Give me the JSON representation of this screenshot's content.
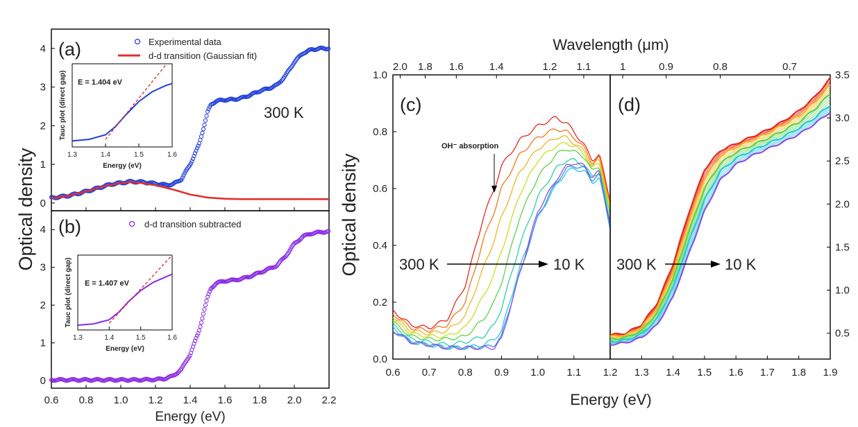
{
  "chart_data": [
    {
      "id": "a",
      "type": "scatter",
      "panel_label": "(a)",
      "annotation": "300 K",
      "xlim": [
        0.6,
        2.2
      ],
      "ylim": [
        -0.2,
        4.5
      ],
      "yticks": [
        "0",
        "1",
        "2",
        "3",
        "4"
      ],
      "legend": [
        "Experimental data",
        "d-d transition (Gaussian fit)"
      ],
      "series": [
        {
          "name": "Experimental data",
          "color": "#1f3fd8",
          "marker": "circle",
          "x": [
            0.6,
            0.65,
            0.7,
            0.75,
            0.8,
            0.85,
            0.9,
            0.95,
            1.0,
            1.05,
            1.1,
            1.15,
            1.2,
            1.25,
            1.3,
            1.35,
            1.4,
            1.45,
            1.48,
            1.5,
            1.52,
            1.55,
            1.6,
            1.65,
            1.7,
            1.75,
            1.8,
            1.85,
            1.9,
            1.95,
            2.0,
            2.05,
            2.1,
            2.15,
            2.2
          ],
          "y": [
            0.13,
            0.16,
            0.19,
            0.24,
            0.3,
            0.36,
            0.43,
            0.49,
            0.52,
            0.55,
            0.55,
            0.53,
            0.5,
            0.47,
            0.48,
            0.62,
            1.0,
            1.5,
            2.0,
            2.35,
            2.55,
            2.64,
            2.67,
            2.68,
            2.72,
            2.8,
            2.9,
            2.96,
            3.05,
            3.3,
            3.65,
            3.88,
            3.97,
            4.0,
            4.0
          ]
        },
        {
          "name": "d-d transition (Gaussian fit)",
          "color": "#e03030",
          "marker": "line",
          "x": [
            0.6,
            0.7,
            0.8,
            0.9,
            1.0,
            1.05,
            1.1,
            1.2,
            1.3,
            1.4,
            1.5,
            1.6,
            1.7,
            1.8,
            2.2
          ],
          "y": [
            0.12,
            0.19,
            0.3,
            0.43,
            0.52,
            0.54,
            0.53,
            0.46,
            0.35,
            0.22,
            0.14,
            0.11,
            0.1,
            0.1,
            0.1
          ]
        }
      ],
      "inset": {
        "label": "E = 1.404 eV",
        "ylabel": "Tauc plot (direct gap)",
        "xlabel": "Energy (eV)",
        "xlim": [
          1.3,
          1.6
        ],
        "xticks": [
          "1.3",
          "1.4",
          "1.5",
          "1.6"
        ],
        "curve_x": [
          1.3,
          1.35,
          1.4,
          1.43,
          1.46,
          1.5,
          1.54,
          1.58,
          1.6
        ],
        "curve_y": [
          0.08,
          0.1,
          0.16,
          0.27,
          0.42,
          0.6,
          0.73,
          0.81,
          0.84
        ],
        "fit_x": [
          1.4,
          1.58
        ],
        "fit_y": [
          0.1,
          1.08
        ]
      }
    },
    {
      "id": "b",
      "type": "scatter",
      "panel_label": "(b)",
      "xlabel": "Energy (eV)",
      "ylabel": "Optical density",
      "xlim": [
        0.6,
        2.2
      ],
      "ylim": [
        -0.2,
        4.5
      ],
      "xticks": [
        "0.6",
        "0.8",
        "1.0",
        "1.2",
        "1.4",
        "1.6",
        "1.8",
        "2.0",
        "2.2"
      ],
      "yticks": [
        "0",
        "1",
        "2",
        "3",
        "4"
      ],
      "legend": [
        "d-d transition subtracted"
      ],
      "series": [
        {
          "name": "d-d transition subtracted",
          "color": "#8a2be2",
          "marker": "circle",
          "x": [
            0.6,
            0.7,
            0.8,
            0.9,
            1.0,
            1.1,
            1.2,
            1.25,
            1.3,
            1.35,
            1.4,
            1.45,
            1.48,
            1.5,
            1.52,
            1.55,
            1.6,
            1.65,
            1.7,
            1.75,
            1.8,
            1.85,
            1.9,
            1.95,
            2.0,
            2.05,
            2.1,
            2.15,
            2.2
          ],
          "y": [
            0.02,
            0.02,
            0.02,
            0.02,
            0.02,
            0.02,
            0.03,
            0.05,
            0.12,
            0.3,
            0.7,
            1.3,
            1.85,
            2.2,
            2.45,
            2.58,
            2.64,
            2.66,
            2.7,
            2.77,
            2.86,
            2.95,
            3.05,
            3.3,
            3.62,
            3.82,
            3.9,
            3.93,
            3.95
          ]
        }
      ],
      "inset": {
        "label": "E = 1.407 eV",
        "ylabel": "Tauc plot (direct gap)",
        "xlabel": "Energy (eV)",
        "xlim": [
          1.3,
          1.6
        ],
        "xticks": [
          "1.3",
          "1.4",
          "1.5",
          "1.6"
        ],
        "curve_x": [
          1.3,
          1.35,
          1.4,
          1.43,
          1.46,
          1.5,
          1.54,
          1.58,
          1.6
        ],
        "curve_y": [
          0.07,
          0.09,
          0.15,
          0.26,
          0.41,
          0.58,
          0.7,
          0.78,
          0.82
        ],
        "fit_x": [
          1.4,
          1.6
        ],
        "fit_y": [
          0.1,
          1.1
        ]
      }
    },
    {
      "id": "c",
      "type": "line",
      "panel_label": "(c)",
      "ylabel": "Optical density",
      "xlim": [
        0.6,
        1.2
      ],
      "ylim": [
        0.0,
        1.0
      ],
      "xticks": [
        "0.6",
        "0.7",
        "0.8",
        "0.9",
        "1.0",
        "1.1"
      ],
      "yticks": [
        "0.0",
        "0.2",
        "0.4",
        "0.6",
        "0.8",
        "1.0"
      ],
      "annotation": "OH⁻ absorption",
      "arrow_text": [
        "300 K",
        "10 K"
      ],
      "series_note": "temperature series 300 K (red) to 10 K (violet)",
      "curves": [
        {
          "color": "#e8281e",
          "x": [
            0.6,
            0.65,
            0.7,
            0.75,
            0.8,
            0.85,
            0.88,
            0.9,
            0.95,
            1.0,
            1.05,
            1.08,
            1.1,
            1.13,
            1.15,
            1.17,
            1.2
          ],
          "y": [
            0.17,
            0.12,
            0.11,
            0.14,
            0.26,
            0.5,
            0.6,
            0.68,
            0.77,
            0.82,
            0.85,
            0.83,
            0.8,
            0.75,
            0.7,
            0.72,
            0.56
          ]
        },
        {
          "color": "#f0781e",
          "x": [
            0.6,
            0.65,
            0.7,
            0.75,
            0.8,
            0.85,
            0.88,
            0.9,
            0.95,
            1.0,
            1.05,
            1.08,
            1.1,
            1.13,
            1.15,
            1.17,
            1.2
          ],
          "y": [
            0.16,
            0.11,
            0.1,
            0.12,
            0.2,
            0.42,
            0.52,
            0.6,
            0.72,
            0.78,
            0.81,
            0.8,
            0.78,
            0.74,
            0.69,
            0.71,
            0.55
          ]
        },
        {
          "color": "#f2b41e",
          "x": [
            0.6,
            0.65,
            0.7,
            0.75,
            0.8,
            0.85,
            0.88,
            0.9,
            0.95,
            1.0,
            1.05,
            1.08,
            1.1,
            1.13,
            1.15,
            1.17,
            1.2
          ],
          "y": [
            0.15,
            0.1,
            0.09,
            0.1,
            0.15,
            0.32,
            0.42,
            0.5,
            0.66,
            0.74,
            0.78,
            0.78,
            0.76,
            0.73,
            0.68,
            0.7,
            0.54
          ]
        },
        {
          "color": "#c8e01e",
          "x": [
            0.6,
            0.65,
            0.7,
            0.75,
            0.8,
            0.85,
            0.88,
            0.9,
            0.95,
            1.0,
            1.05,
            1.08,
            1.1,
            1.13,
            1.15,
            1.17,
            1.2
          ],
          "y": [
            0.14,
            0.09,
            0.08,
            0.08,
            0.11,
            0.22,
            0.3,
            0.38,
            0.58,
            0.7,
            0.75,
            0.76,
            0.75,
            0.72,
            0.67,
            0.69,
            0.52
          ]
        },
        {
          "color": "#5cd24a",
          "x": [
            0.6,
            0.65,
            0.7,
            0.75,
            0.8,
            0.85,
            0.88,
            0.9,
            0.95,
            1.0,
            1.05,
            1.08,
            1.1,
            1.13,
            1.15,
            1.17,
            1.2
          ],
          "y": [
            0.13,
            0.08,
            0.07,
            0.07,
            0.08,
            0.14,
            0.2,
            0.27,
            0.5,
            0.64,
            0.72,
            0.74,
            0.73,
            0.71,
            0.66,
            0.68,
            0.5
          ]
        },
        {
          "color": "#2ad2a0",
          "x": [
            0.6,
            0.65,
            0.7,
            0.75,
            0.8,
            0.85,
            0.88,
            0.9,
            0.95,
            1.0,
            1.05,
            1.08,
            1.1,
            1.13,
            1.15,
            1.17,
            1.2
          ],
          "y": [
            0.12,
            0.07,
            0.06,
            0.05,
            0.06,
            0.08,
            0.12,
            0.18,
            0.4,
            0.57,
            0.67,
            0.7,
            0.7,
            0.68,
            0.64,
            0.66,
            0.48
          ]
        },
        {
          "color": "#24c8dc",
          "x": [
            0.6,
            0.65,
            0.7,
            0.75,
            0.8,
            0.85,
            0.88,
            0.9,
            0.95,
            1.0,
            1.05,
            1.08,
            1.1,
            1.13,
            1.15,
            1.17,
            1.2
          ],
          "y": [
            0.11,
            0.06,
            0.05,
            0.04,
            0.04,
            0.05,
            0.07,
            0.1,
            0.32,
            0.5,
            0.61,
            0.66,
            0.67,
            0.66,
            0.62,
            0.64,
            0.46
          ]
        },
        {
          "color": "#3c8ce6",
          "x": [
            0.6,
            0.65,
            0.7,
            0.75,
            0.8,
            0.85,
            0.88,
            0.9,
            0.95,
            1.0,
            1.05,
            1.08,
            1.1,
            1.13,
            1.15,
            1.17,
            1.2
          ],
          "y": [
            0.1,
            0.06,
            0.05,
            0.04,
            0.04,
            0.04,
            0.05,
            0.08,
            0.3,
            0.5,
            0.62,
            0.67,
            0.68,
            0.67,
            0.63,
            0.65,
            0.47
          ]
        },
        {
          "color": "#8a50e6",
          "x": [
            0.6,
            0.65,
            0.7,
            0.75,
            0.8,
            0.85,
            0.88,
            0.9,
            0.95,
            1.0,
            1.05,
            1.08,
            1.1,
            1.13,
            1.15,
            1.17,
            1.2
          ],
          "y": [
            0.1,
            0.06,
            0.05,
            0.04,
            0.04,
            0.04,
            0.04,
            0.07,
            0.3,
            0.52,
            0.63,
            0.68,
            0.69,
            0.68,
            0.64,
            0.66,
            0.48
          ]
        }
      ]
    },
    {
      "id": "d",
      "type": "line",
      "panel_label": "(d)",
      "xlim": [
        1.2,
        1.9
      ],
      "ylim": [
        0.2,
        3.5
      ],
      "xticks": [
        "1.2",
        "1.3",
        "1.4",
        "1.5",
        "1.6",
        "1.7",
        "1.8",
        "1.9"
      ],
      "yticks": [
        "0.5",
        "1.0",
        "1.5",
        "2.0",
        "2.5",
        "3.0",
        "3.5"
      ],
      "arrow_text": [
        "300 K",
        "10 K"
      ],
      "curves": [
        {
          "color": "#e8281e",
          "x": [
            1.2,
            1.25,
            1.3,
            1.35,
            1.4,
            1.45,
            1.5,
            1.55,
            1.6,
            1.65,
            1.7,
            1.75,
            1.8,
            1.85,
            1.9
          ],
          "y": [
            0.48,
            0.5,
            0.6,
            0.85,
            1.3,
            1.9,
            2.4,
            2.62,
            2.7,
            2.78,
            2.86,
            2.96,
            3.08,
            3.24,
            3.46
          ]
        },
        {
          "color": "#f2b41e",
          "x": [
            1.2,
            1.25,
            1.3,
            1.35,
            1.4,
            1.45,
            1.5,
            1.55,
            1.6,
            1.65,
            1.7,
            1.75,
            1.8,
            1.85,
            1.9
          ],
          "y": [
            0.46,
            0.48,
            0.57,
            0.8,
            1.22,
            1.8,
            2.3,
            2.56,
            2.66,
            2.74,
            2.82,
            2.92,
            3.02,
            3.18,
            3.38
          ]
        },
        {
          "color": "#5cd24a",
          "x": [
            1.2,
            1.25,
            1.3,
            1.35,
            1.4,
            1.45,
            1.5,
            1.55,
            1.6,
            1.65,
            1.7,
            1.75,
            1.8,
            1.85,
            1.9
          ],
          "y": [
            0.43,
            0.45,
            0.53,
            0.74,
            1.13,
            1.68,
            2.18,
            2.47,
            2.6,
            2.68,
            2.76,
            2.85,
            2.95,
            3.1,
            3.28
          ]
        },
        {
          "color": "#24c8dc",
          "x": [
            1.2,
            1.25,
            1.3,
            1.35,
            1.4,
            1.45,
            1.5,
            1.55,
            1.6,
            1.65,
            1.7,
            1.75,
            1.8,
            1.85,
            1.9
          ],
          "y": [
            0.4,
            0.42,
            0.49,
            0.67,
            1.03,
            1.56,
            2.05,
            2.38,
            2.53,
            2.62,
            2.7,
            2.78,
            2.88,
            3.0,
            3.15
          ]
        },
        {
          "color": "#8a50e6",
          "x": [
            1.2,
            1.25,
            1.3,
            1.35,
            1.4,
            1.45,
            1.5,
            1.55,
            1.6,
            1.65,
            1.7,
            1.75,
            1.8,
            1.85,
            1.9
          ],
          "y": [
            0.37,
            0.39,
            0.45,
            0.6,
            0.92,
            1.42,
            1.92,
            2.28,
            2.46,
            2.56,
            2.64,
            2.72,
            2.81,
            2.93,
            3.07
          ]
        }
      ]
    }
  ],
  "shared": {
    "xlabel_cd": "Energy (eV)",
    "top_axis_label": "Wavelength (μm)",
    "top_ticks": [
      "2.0",
      "1.8",
      "1.6",
      "1.4",
      "1.2",
      "1.1",
      "1",
      "0.9",
      "0.8",
      "0.7"
    ],
    "top_tick_energies": [
      0.62,
      0.689,
      0.775,
      0.886,
      1.033,
      1.127,
      1.24,
      1.378,
      1.55,
      1.771
    ]
  }
}
